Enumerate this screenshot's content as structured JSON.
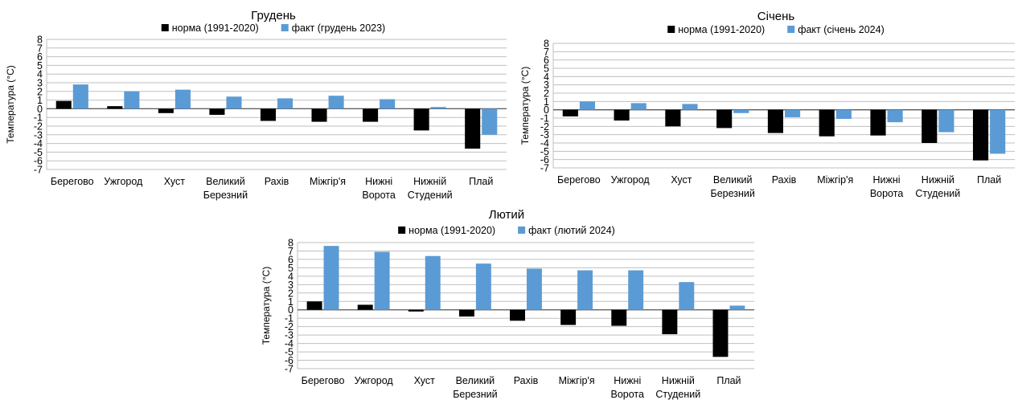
{
  "chart_data": [
    {
      "type": "bar",
      "title": "Грудень",
      "ylabel": "Температура (°C)",
      "xlabel": "",
      "ylim": [
        -7,
        8
      ],
      "yticks": [
        8,
        7,
        6,
        5,
        4,
        3,
        2,
        1,
        0,
        -1,
        -2,
        -3,
        -4,
        -5,
        -6,
        -7
      ],
      "grid": true,
      "legend_position": "top",
      "categories": [
        [
          "Берегово"
        ],
        [
          "Ужгород"
        ],
        [
          "Хуст"
        ],
        [
          "Великий",
          "Березний"
        ],
        [
          "Рахів"
        ],
        [
          "Міжгір'я"
        ],
        [
          "Нижні",
          "Ворота"
        ],
        [
          "Нижній",
          "Студений"
        ],
        [
          "Плай"
        ]
      ],
      "series": [
        {
          "name": "норма (1991-2020)",
          "color": "#000000",
          "values": [
            0.9,
            0.3,
            -0.5,
            -0.7,
            -1.4,
            -1.5,
            -1.5,
            -2.5,
            -4.6
          ]
        },
        {
          "name": "факт (грудень 2023)",
          "color": "#5b9bd5",
          "values": [
            2.8,
            2.0,
            2.2,
            1.4,
            1.2,
            1.5,
            1.1,
            0.2,
            -3.0
          ]
        }
      ]
    },
    {
      "type": "bar",
      "title": "Січень",
      "ylabel": "Температура (°C)",
      "xlabel": "",
      "ylim": [
        -7,
        8
      ],
      "yticks": [
        8,
        7,
        6,
        5,
        4,
        3,
        2,
        1,
        0,
        -1,
        -2,
        -3,
        -4,
        -5,
        -6,
        -7
      ],
      "grid": true,
      "legend_position": "top",
      "categories": [
        [
          "Берегово"
        ],
        [
          "Ужгород"
        ],
        [
          "Хуст"
        ],
        [
          "Великий",
          "Березний"
        ],
        [
          "Рахів"
        ],
        [
          "Міжгір'я"
        ],
        [
          "Нижні",
          "Ворота"
        ],
        [
          "Нижній",
          "Студений"
        ],
        [
          "Плай"
        ]
      ],
      "series": [
        {
          "name": "норма (1991-2020)",
          "color": "#000000",
          "values": [
            -0.8,
            -1.3,
            -2.0,
            -2.2,
            -2.8,
            -3.2,
            -3.1,
            -4.0,
            -6.1
          ]
        },
        {
          "name": "факт (січень 2024)",
          "color": "#5b9bd5",
          "values": [
            1.0,
            0.8,
            0.7,
            -0.4,
            -0.9,
            -1.1,
            -1.5,
            -2.7,
            -5.3
          ]
        }
      ]
    },
    {
      "type": "bar",
      "title": "Лютий",
      "ylabel": "Температура (°C)",
      "xlabel": "",
      "ylim": [
        -7,
        8
      ],
      "yticks": [
        8,
        7,
        6,
        5,
        4,
        3,
        2,
        1,
        0,
        -1,
        -2,
        -3,
        -4,
        -5,
        -6,
        -7
      ],
      "grid": true,
      "legend_position": "top",
      "categories": [
        [
          "Берегово"
        ],
        [
          "Ужгород"
        ],
        [
          "Хуст"
        ],
        [
          "Великий",
          "Березний"
        ],
        [
          "Рахів"
        ],
        [
          "Міжгір'я"
        ],
        [
          "Нижні",
          "Ворота"
        ],
        [
          "Нижній",
          "Студений"
        ],
        [
          "Плай"
        ]
      ],
      "series": [
        {
          "name": "норма (1991-2020)",
          "color": "#000000",
          "values": [
            1.0,
            0.6,
            -0.2,
            -0.8,
            -1.3,
            -1.8,
            -1.9,
            -2.9,
            -5.6
          ]
        },
        {
          "name": "факт (лютий 2024)",
          "color": "#5b9bd5",
          "values": [
            7.6,
            6.9,
            6.4,
            5.5,
            4.9,
            4.7,
            4.7,
            3.3,
            0.5
          ]
        }
      ]
    }
  ]
}
